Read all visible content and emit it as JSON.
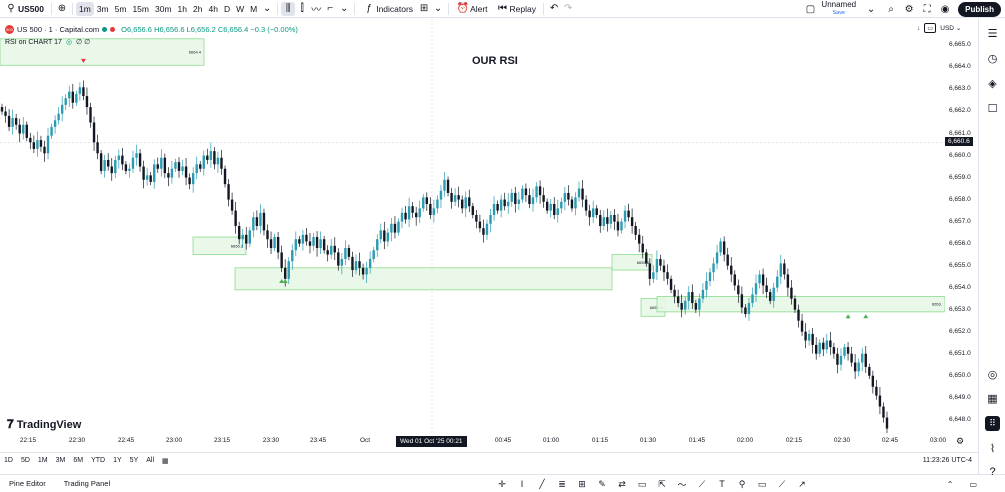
{
  "toolbar": {
    "symbol": "US500",
    "intervals": [
      "1m",
      "3m",
      "5m",
      "15m",
      "30m",
      "1h",
      "2h",
      "4h",
      "D",
      "W",
      "M"
    ],
    "active_interval": "1m",
    "indicators_label": "Indicators",
    "alert_label": "Alert",
    "replay_label": "Replay",
    "layout_name": "Unnamed",
    "save_label": "Save",
    "publish_label": "Publish"
  },
  "legend": {
    "instrument": "US 500 · 1 · Capital.com",
    "ohlc": "O6,656.6 H6,656.6 L6,656.2 C6,656.4 −0.3 (−0.00%)",
    "indicator": "RSI on CHART 17",
    "indicator_values": "∅ ∅",
    "logo_badge": "500"
  },
  "chart_title": "OUR RSI",
  "branding": "TradingView",
  "price_axis": {
    "currency": "USD",
    "labels": [
      "6,665.0",
      "6,664.0",
      "6,663.0",
      "6,662.0",
      "6,661.0",
      "6,660.0",
      "6,659.0",
      "6,658.0",
      "6,657.0",
      "6,656.0",
      "6,655.0",
      "6,654.0",
      "6,653.0",
      "6,652.0",
      "6,651.0",
      "6,650.0",
      "6,649.0",
      "6,648.0"
    ],
    "current_price": "6,660.6"
  },
  "time_axis": {
    "labels": [
      "22:15",
      "22:30",
      "22:45",
      "23:00",
      "23:15",
      "23:30",
      "23:45",
      "Oct",
      "00:45",
      "01:00",
      "01:15",
      "01:30",
      "01:45",
      "02:00",
      "02:15",
      "02:30",
      "02:45",
      "03:00"
    ],
    "crosshair_time": "Wed 01 Oct '25   00:21"
  },
  "ranges": [
    "1D",
    "5D",
    "1M",
    "3M",
    "6M",
    "YTD",
    "1Y",
    "5Y",
    "All"
  ],
  "clock": "11:23:26 UTC-4",
  "bottom_panels": [
    "Pine Editor",
    "Trading Panel"
  ],
  "zones": [
    {
      "label": "6664.4",
      "top": 6665.3,
      "bottom": 6664.1
    },
    {
      "label": "6656.3",
      "top": 6656.3,
      "bottom": 6655.5
    },
    {
      "label": "",
      "top": 6654.9,
      "bottom": 6653.9
    },
    {
      "label": "6655.6",
      "top": 6655.5,
      "bottom": 6654.8
    },
    {
      "label": "6653.4",
      "top": 6653.5,
      "bottom": 6652.7
    },
    {
      "label": "6653.",
      "top": 6653.6,
      "bottom": 6652.9
    }
  ],
  "colors": {
    "up": "#2a9bb2",
    "down": "#131722",
    "zone_fill": "#e6f7e6",
    "zone_border": "#7ed67e"
  },
  "chart_data": {
    "type": "candlestick",
    "title": "OUR RSI",
    "ylim": [
      6647.4,
      6666.2
    ],
    "x_range": [
      "22:00",
      "03:00"
    ],
    "closes": [
      6662.0,
      6661.8,
      6661.3,
      6661.7,
      6661.4,
      6661.0,
      6661.4,
      6660.8,
      6660.6,
      6660.3,
      6660.7,
      6660.4,
      6660.1,
      6660.9,
      6661.3,
      6661.6,
      6661.9,
      6662.3,
      6662.6,
      6662.9,
      6662.4,
      6662.8,
      6663.1,
      6662.7,
      6662.2,
      6661.5,
      6660.6,
      6660.1,
      6659.3,
      6659.8,
      6659.5,
      6659.2,
      6659.8,
      6660.0,
      6659.6,
      6659.3,
      6659.4,
      6659.9,
      6660.1,
      6659.5,
      6658.9,
      6659.1,
      6658.8,
      6659.6,
      6659.4,
      6659.9,
      6659.2,
      6659.0,
      6659.4,
      6659.7,
      6659.3,
      6659.5,
      6659.0,
      6658.7,
      6659.2,
      6659.6,
      6659.4,
      6660.0,
      6659.8,
      6660.2,
      6659.6,
      6659.9,
      6659.4,
      6658.7,
      6658.0,
      6657.5,
      6656.8,
      6656.2,
      6656.4,
      6656.0,
      6656.6,
      6657.2,
      6656.8,
      6657.4,
      6656.6,
      6656.2,
      6655.8,
      6656.3,
      6655.6,
      6654.9,
      6654.4,
      6655.2,
      6655.7,
      6656.2,
      6656.0,
      6656.4,
      6656.1,
      6655.9,
      6656.3,
      6655.8,
      6656.2,
      6655.7,
      6655.5,
      6655.9,
      6655.6,
      6655.0,
      6655.3,
      6655.8,
      6655.4,
      6654.8,
      6655.2,
      6654.9,
      6654.6,
      6654.9,
      6655.3,
      6655.7,
      6656.2,
      6656.6,
      6656.1,
      6656.5,
      6656.9,
      6656.5,
      6657.0,
      6657.4,
      6657.1,
      6657.7,
      6657.4,
      6657.2,
      6657.6,
      6658.1,
      6657.8,
      6657.3,
      6657.6,
      6658.0,
      6658.4,
      6658.9,
      6658.3,
      6657.9,
      6658.2,
      6658.0,
      6657.6,
      6658.1,
      6657.7,
      6657.3,
      6657.0,
      6656.7,
      6656.4,
      6656.9,
      6657.3,
      6657.8,
      6657.5,
      6658.0,
      6657.7,
      6657.9,
      6658.3,
      6657.8,
      6658.0,
      6658.5,
      6658.2,
      6657.8,
      6658.1,
      6658.6,
      6658.2,
      6657.9,
      6657.5,
      6657.8,
      6657.3,
      6657.6,
      6657.9,
      6658.3,
      6658.0,
      6657.6,
      6658.1,
      6658.5,
      6658.0,
      6657.5,
      6657.2,
      6657.6,
      6657.3,
      6656.8,
      6657.2,
      6656.9,
      6657.3,
      6657.0,
      6656.6,
      6657.0,
      6657.5,
      6657.2,
      6656.8,
      6656.4,
      6656.0,
      6655.6,
      6655.1,
      6654.4,
      6654.7,
      6655.3,
      6655.0,
      6654.7,
      6654.4,
      6653.9,
      6653.6,
      6653.3,
      6653.0,
      6653.4,
      6653.8,
      6653.3,
      6653.0,
      6653.5,
      6653.9,
      6654.3,
      6654.7,
      6655.1,
      6655.6,
      6656.1,
      6655.5,
      6655.0,
      6654.6,
      6654.1,
      6653.7,
      6653.1,
      6652.8,
      6653.3,
      6653.7,
      6654.2,
      6654.6,
      6654.1,
      6653.8,
      6653.4,
      6654.0,
      6654.5,
      6655.1,
      6654.6,
      6654.0,
      6653.5,
      6653.0,
      6652.5,
      6652.0,
      6651.6,
      6651.9,
      6651.4,
      6651.0,
      6651.5,
      6651.2,
      6651.6,
      6651.3,
      6651.0,
      6650.5,
      6650.9,
      6651.3,
      6651.0,
      6650.6,
      6650.2,
      6650.6,
      6651.0,
      6650.4,
      6650.0,
      6649.5,
      6649.1,
      6648.6,
      6648.1,
      6647.6
    ],
    "markers": [
      {
        "type": "down-triangle",
        "price": 6664.3,
        "x_index": 23
      },
      {
        "type": "up-triangle",
        "price": 6654.3,
        "x_index": 79
      },
      {
        "type": "up-triangle",
        "price": 6654.3,
        "x_index": 80
      },
      {
        "type": "up-triangle",
        "price": 6652.7,
        "x_index": 239
      },
      {
        "type": "up-triangle",
        "price": 6652.7,
        "x_index": 244
      }
    ]
  }
}
